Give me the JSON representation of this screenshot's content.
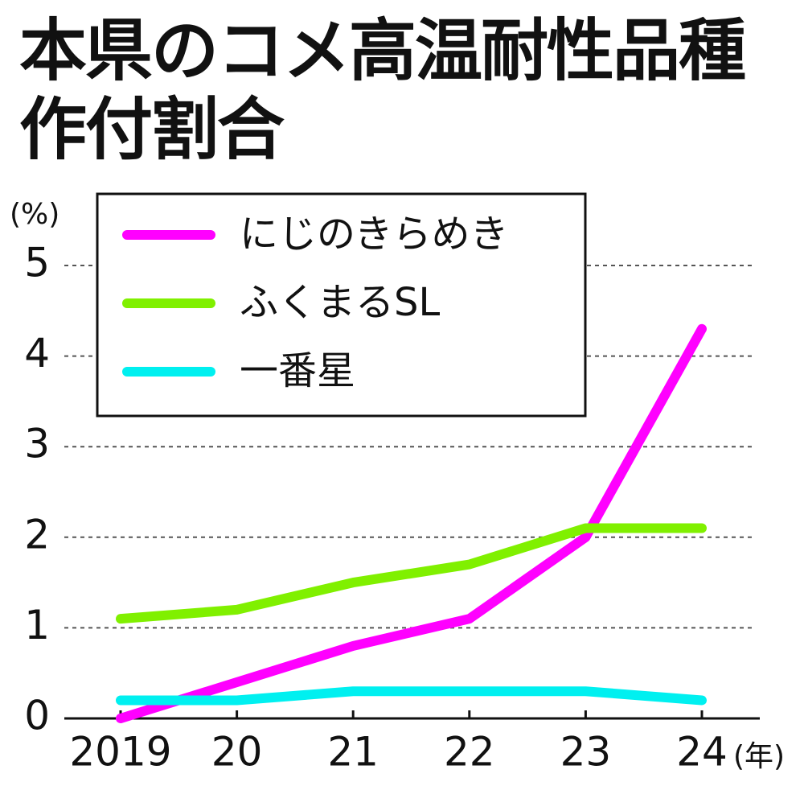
{
  "chart_data": {
    "type": "line",
    "title": "本県のコメ高温耐性品種作付割合",
    "y_unit": "(%)",
    "x_unit": "(年)",
    "categories": [
      "2019",
      "20",
      "21",
      "22",
      "23",
      "24"
    ],
    "series": [
      {
        "name": "にじのきらめき",
        "color": "#ff00ff",
        "values": [
          0,
          0.4,
          0.8,
          1.1,
          2.0,
          4.3
        ]
      },
      {
        "name": "ふくまるSL",
        "color": "#80f000",
        "values": [
          1.1,
          1.2,
          1.5,
          1.7,
          2.1,
          2.1
        ]
      },
      {
        "name": "一番星",
        "color": "#00f0f0",
        "values": [
          0.2,
          0.2,
          0.3,
          0.3,
          0.3,
          0.2
        ]
      }
    ],
    "ylim": [
      0,
      5
    ],
    "yticks": [
      0,
      1,
      2,
      3,
      4,
      5
    ],
    "grid": true
  }
}
